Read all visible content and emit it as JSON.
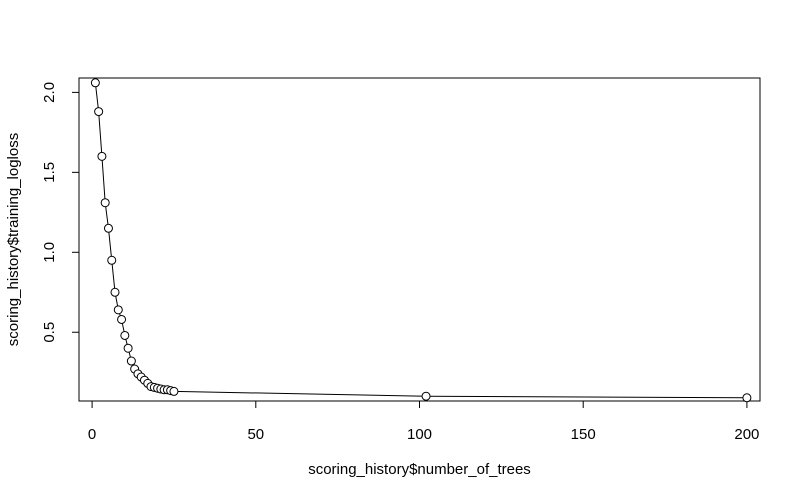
{
  "chart_data": {
    "type": "line",
    "title": "",
    "xlabel": "scoring_history$number_of_trees",
    "ylabel": "scoring_history$training_logloss",
    "xlim": [
      -4,
      204
    ],
    "ylim": [
      0.07,
      2.09
    ],
    "x_ticks": [
      0,
      50,
      100,
      150,
      200
    ],
    "y_ticks": [
      0.5,
      1.0,
      1.5,
      2.0
    ],
    "x_tick_labels": [
      "0",
      "50",
      "100",
      "150",
      "200"
    ],
    "y_tick_labels": [
      "0.5",
      "1.0",
      "1.5",
      "2.0"
    ],
    "grid": false,
    "markers": "open-circle",
    "line_color": "#000000",
    "series": [
      {
        "x": [
          1,
          2,
          3,
          4,
          5,
          6,
          7,
          8,
          9,
          10,
          11,
          12,
          13,
          14,
          15,
          16,
          17,
          18,
          19,
          20,
          21,
          22,
          23,
          24,
          25,
          102,
          200
        ],
        "y": [
          2.06,
          1.88,
          1.6,
          1.31,
          1.15,
          0.95,
          0.75,
          0.64,
          0.58,
          0.48,
          0.4,
          0.32,
          0.27,
          0.24,
          0.22,
          0.2,
          0.18,
          0.16,
          0.155,
          0.15,
          0.145,
          0.14,
          0.14,
          0.135,
          0.13,
          0.1,
          0.09
        ]
      }
    ]
  }
}
